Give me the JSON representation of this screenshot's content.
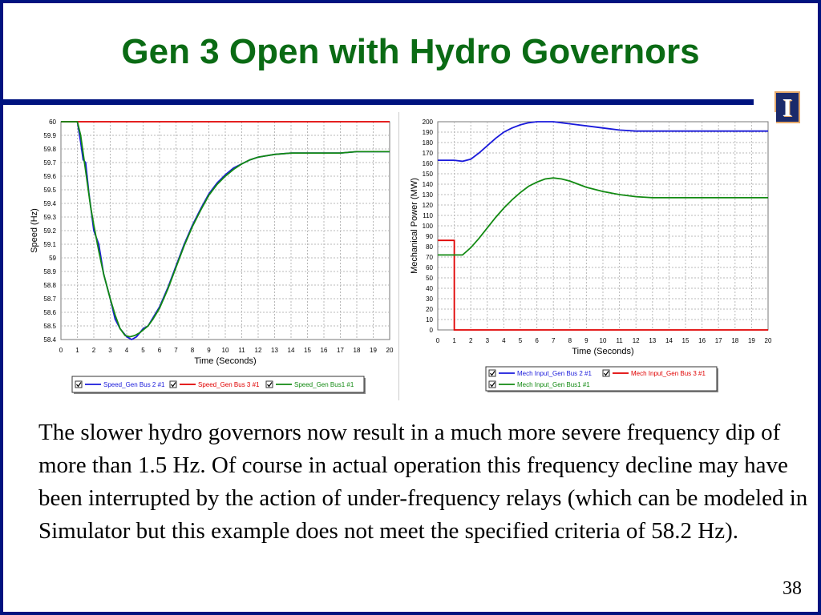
{
  "slide": {
    "title": "Gen 3 Open with Hydro Governors",
    "logo_letter": "I",
    "body": "The slower hydro governors now result in a much more severe frequency dip of more than 1.5 Hz.  Of course in actual operation this frequency decline may have been interrupted by the action of under-frequency relays (which can be modeled in Simulator but this example does not meet the specified criteria of 58.2 Hz).",
    "page_number": "38"
  },
  "colors": {
    "frame": "#00137f",
    "title": "#0a6b14",
    "blue": "#1a1adb",
    "red": "#e00000",
    "green": "#128a12"
  },
  "chart_data": [
    {
      "type": "line",
      "xlabel": "Time (Seconds)",
      "ylabel": "Speed (Hz)",
      "xlim": [
        0,
        20
      ],
      "ylim": [
        58.4,
        60
      ],
      "xticks": [
        0,
        1,
        2,
        3,
        4,
        5,
        6,
        7,
        8,
        9,
        10,
        11,
        12,
        13,
        14,
        15,
        16,
        17,
        18,
        19,
        20
      ],
      "yticks": [
        58.4,
        58.5,
        58.6,
        58.7,
        58.8,
        58.9,
        59,
        59.1,
        59.2,
        59.3,
        59.4,
        59.5,
        59.6,
        59.7,
        59.8,
        59.9,
        60
      ],
      "ytick_labels": [
        "58.4",
        "58.5",
        "58.6",
        "58.7",
        "58.8",
        "58.9",
        "59",
        "59.1",
        "59.2",
        "59.3",
        "59.4",
        "59.5",
        "59.6",
        "59.7",
        "59.8",
        "59.9",
        "60"
      ],
      "grid": true,
      "legend_position": "bottom",
      "series": [
        {
          "name": "Speed_Gen Bus 2 #1",
          "color": "#1a1adb",
          "x": [
            0,
            1,
            1.2,
            1.35,
            1.5,
            1.7,
            2,
            2.3,
            2.6,
            3,
            3.3,
            3.6,
            4,
            4.3,
            4.6,
            4.8,
            5,
            5.3,
            5.6,
            6,
            6.5,
            7,
            7.5,
            8,
            8.5,
            9,
            9.5,
            10,
            10.5,
            11,
            11.5,
            12,
            12.5,
            13,
            14,
            15,
            16,
            17,
            18,
            19,
            20
          ],
          "y": [
            60,
            60,
            59.85,
            59.72,
            59.7,
            59.48,
            59.2,
            59.1,
            58.88,
            58.7,
            58.55,
            58.48,
            58.42,
            58.4,
            58.42,
            58.45,
            58.48,
            58.5,
            58.56,
            58.64,
            58.78,
            58.94,
            59.1,
            59.24,
            59.36,
            59.47,
            59.55,
            59.61,
            59.66,
            59.69,
            59.72,
            59.74,
            59.75,
            59.76,
            59.77,
            59.77,
            59.77,
            59.77,
            59.78,
            59.78,
            59.78
          ]
        },
        {
          "name": "Speed_Gen Bus 3 #1",
          "color": "#e00000",
          "x": [
            0,
            20
          ],
          "y": [
            60,
            60
          ]
        },
        {
          "name": "Speed_Gen Bus1 #1",
          "color": "#128a12",
          "x": [
            0,
            1,
            1.2,
            1.5,
            1.8,
            2,
            2.3,
            2.6,
            3,
            3.3,
            3.6,
            3.9,
            4.2,
            4.5,
            4.8,
            5,
            5.3,
            5.6,
            6,
            6.5,
            7,
            7.5,
            8,
            8.5,
            9,
            9.5,
            10,
            10.5,
            11,
            11.5,
            12,
            12.5,
            13,
            14,
            15,
            16,
            17,
            18,
            19,
            20
          ],
          "y": [
            60,
            60,
            59.9,
            59.64,
            59.38,
            59.24,
            59.05,
            58.88,
            58.7,
            58.58,
            58.48,
            58.43,
            58.42,
            58.43,
            58.45,
            58.47,
            58.5,
            58.55,
            58.63,
            58.77,
            58.93,
            59.09,
            59.23,
            59.35,
            59.46,
            59.54,
            59.6,
            59.65,
            59.69,
            59.72,
            59.74,
            59.75,
            59.76,
            59.77,
            59.77,
            59.77,
            59.77,
            59.78,
            59.78,
            59.78
          ]
        }
      ]
    },
    {
      "type": "line",
      "xlabel": "Time (Seconds)",
      "ylabel": "Mechanical Power (MW)",
      "xlim": [
        0,
        20
      ],
      "ylim": [
        0,
        200
      ],
      "xticks": [
        0,
        1,
        2,
        3,
        4,
        5,
        6,
        7,
        8,
        9,
        10,
        11,
        12,
        13,
        14,
        15,
        16,
        17,
        18,
        19,
        20
      ],
      "yticks": [
        0,
        10,
        20,
        30,
        40,
        50,
        60,
        70,
        80,
        90,
        100,
        110,
        120,
        130,
        140,
        150,
        160,
        170,
        180,
        190,
        200
      ],
      "ytick_labels": [
        "0",
        "10",
        "20",
        "30",
        "40",
        "50",
        "60",
        "70",
        "80",
        "90",
        "100",
        "110",
        "120",
        "130",
        "140",
        "150",
        "160",
        "170",
        "180",
        "190",
        "200"
      ],
      "grid": true,
      "legend_position": "bottom",
      "series": [
        {
          "name": "Mech Input_Gen Bus 2 #1",
          "color": "#1a1adb",
          "x": [
            0,
            1,
            1.5,
            2,
            2.5,
            3,
            3.5,
            4,
            4.5,
            5,
            5.5,
            6,
            6.5,
            7,
            7.5,
            8,
            9,
            10,
            11,
            12,
            13,
            14,
            15,
            16,
            17,
            18,
            19,
            20
          ],
          "y": [
            163,
            163,
            162,
            164,
            170,
            177,
            184,
            190,
            194,
            197,
            199,
            200,
            200,
            200,
            199,
            198,
            196,
            194,
            192,
            191,
            191,
            191,
            191,
            191,
            191,
            191,
            191,
            191
          ]
        },
        {
          "name": "Mech Input_Gen Bus 3 #1",
          "color": "#e00000",
          "x": [
            0,
            1,
            1,
            20
          ],
          "y": [
            86,
            86,
            0,
            0
          ]
        },
        {
          "name": "Mech Input_Gen Bus1 #1",
          "color": "#128a12",
          "x": [
            0,
            1,
            1.5,
            2,
            2.5,
            3,
            3.5,
            4,
            4.5,
            5,
            5.5,
            6,
            6.5,
            7,
            7.5,
            8,
            8.5,
            9,
            10,
            11,
            12,
            13,
            14,
            15,
            16,
            17,
            18,
            19,
            20
          ],
          "y": [
            72,
            72,
            72,
            79,
            88,
            98,
            108,
            117,
            125,
            132,
            138,
            142,
            145,
            146,
            145,
            143,
            140,
            137,
            133,
            130,
            128,
            127,
            127,
            127,
            127,
            127,
            127,
            127,
            127
          ]
        }
      ]
    }
  ]
}
